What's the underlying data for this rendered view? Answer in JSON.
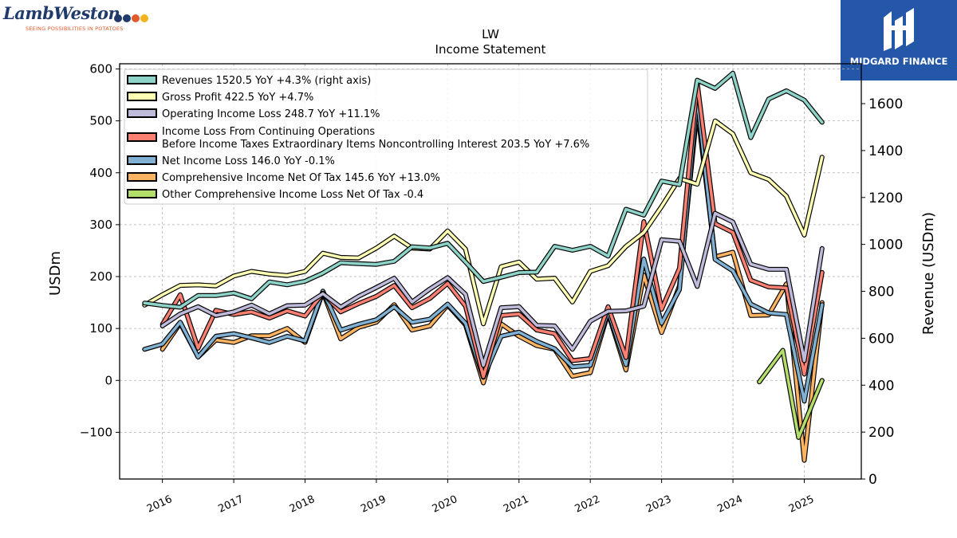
{
  "header": {
    "brand_name": "LambWeston",
    "brand_tagline": "SEEING POSSIBILITIES IN POTATOES",
    "badge_label": "MIDGARD FINANCE"
  },
  "chart_data": {
    "type": "line",
    "title": "LW",
    "subtitle": "Income Statement",
    "ylabel": "USDm",
    "y2label": "Revenue (USDm)",
    "ylim": [
      -190,
      610
    ],
    "y2lim": [
      0,
      1770
    ],
    "yticks": [
      -100,
      0,
      100,
      200,
      300,
      400,
      500,
      600
    ],
    "y2ticks": [
      0,
      200,
      400,
      600,
      800,
      1000,
      1200,
      1400,
      1600
    ],
    "xlim": [
      2015.4,
      2025.8
    ],
    "xticks": [
      2016,
      2017,
      2018,
      2019,
      2020,
      2021,
      2022,
      2023,
      2024,
      2025
    ],
    "grid": true,
    "legend_position": "top-left",
    "series": [
      {
        "name": "Revenues  1520.5 YoY +4.3% (right axis)",
        "axis": "right",
        "color": "#8dd3c7",
        "x": [
          2015.75,
          2016.0,
          2016.25,
          2016.5,
          2016.75,
          2017.0,
          2017.25,
          2017.5,
          2017.75,
          2018.0,
          2018.25,
          2018.5,
          2018.75,
          2019.0,
          2019.25,
          2019.5,
          2019.75,
          2020.0,
          2020.25,
          2020.5,
          2020.75,
          2021.0,
          2021.25,
          2021.5,
          2021.75,
          2022.0,
          2022.25,
          2022.5,
          2022.75,
          2023.0,
          2023.25,
          2023.5,
          2023.75,
          2024.0,
          2024.25,
          2024.5,
          2024.75,
          2025.0,
          2025.25
        ],
        "y": [
          750,
          740,
          732,
          782,
          782,
          793,
          768,
          840,
          828,
          843,
          878,
          922,
          918,
          915,
          928,
          990,
          985,
          1005,
          925,
          842,
          860,
          880,
          882,
          992,
          975,
          992,
          950,
          1150,
          1125,
          1270,
          1255,
          1700,
          1665,
          1730,
          1455,
          1620,
          1655,
          1615,
          1520.5
        ]
      },
      {
        "name": "Gross Profit  422.5 YoY +4.7%",
        "axis": "left",
        "color": "#ffffb3",
        "x": [
          2015.75,
          2016.0,
          2016.25,
          2016.5,
          2016.75,
          2017.0,
          2017.25,
          2017.5,
          2017.75,
          2018.0,
          2018.25,
          2018.5,
          2018.75,
          2019.0,
          2019.25,
          2019.5,
          2019.75,
          2020.0,
          2020.25,
          2020.5,
          2020.75,
          2021.0,
          2021.25,
          2021.5,
          2021.75,
          2022.0,
          2022.25,
          2022.5,
          2022.75,
          2023.0,
          2023.25,
          2023.5,
          2023.75,
          2024.0,
          2024.25,
          2024.5,
          2024.75,
          2025.0,
          2025.25
        ],
        "y": [
          145,
          165,
          183,
          184,
          182,
          201,
          210,
          205,
          202,
          210,
          245,
          237,
          236,
          255,
          278,
          255,
          253,
          288,
          253,
          109,
          219,
          228,
          195,
          197,
          151,
          210,
          221,
          258,
          285,
          335,
          389,
          378,
          500,
          475,
          400,
          387,
          355,
          280,
          430
        ]
      },
      {
        "name": "Operating Income Loss  248.7 YoY +11.1%",
        "axis": "left",
        "color": "#bebada",
        "x": [
          2016.0,
          2016.25,
          2016.5,
          2016.75,
          2017.0,
          2017.25,
          2017.5,
          2017.75,
          2018.0,
          2018.25,
          2018.5,
          2018.75,
          2019.0,
          2019.25,
          2019.5,
          2019.75,
          2020.0,
          2020.25,
          2020.5,
          2020.75,
          2021.0,
          2021.25,
          2021.5,
          2021.75,
          2022.0,
          2022.25,
          2022.5,
          2022.75,
          2023.0,
          2023.25,
          2023.5,
          2023.75,
          2024.0,
          2024.25,
          2024.5,
          2024.75,
          2025.0,
          2025.25
        ],
        "y": [
          105,
          128,
          142,
          125,
          132,
          145,
          128,
          144,
          145,
          167,
          141,
          162,
          179,
          197,
          151,
          176,
          198,
          166,
          29,
          140,
          142,
          106,
          105,
          60,
          114,
          133,
          134,
          143,
          271,
          268,
          181,
          322,
          305,
          224,
          214,
          214,
          38,
          254
        ]
      },
      {
        "name": "Income Loss From Continuing Operations",
        "name2": "Before Income Taxes Extraordinary Items Noncontrolling Interest  203.5 YoY +7.6%",
        "axis": "left",
        "color": "#fb8072",
        "x": [
          2016.0,
          2016.25,
          2016.5,
          2016.75,
          2017.0,
          2017.25,
          2017.5,
          2017.75,
          2018.0,
          2018.25,
          2018.5,
          2018.75,
          2019.0,
          2019.25,
          2019.5,
          2019.75,
          2020.0,
          2020.25,
          2020.5,
          2020.75,
          2021.0,
          2021.25,
          2021.5,
          2021.75,
          2022.0,
          2022.25,
          2022.5,
          2022.75,
          2023.0,
          2023.25,
          2023.5,
          2023.75,
          2024.0,
          2024.25,
          2024.5,
          2024.75,
          2025.0,
          2025.25
        ],
        "y": [
          108,
          165,
          62,
          135,
          127,
          132,
          120,
          134,
          124,
          168,
          132,
          148,
          162,
          183,
          140,
          158,
          187,
          143,
          7,
          125,
          128,
          97,
          90,
          38,
          42,
          142,
          44,
          306,
          137,
          216,
          573,
          302,
          285,
          193,
          180,
          178,
          12,
          208
        ]
      },
      {
        "name": "Net Income Loss  146.0 YoY -0.1%",
        "axis": "left",
        "color": "#80b1d3",
        "x": [
          2015.75,
          2016.0,
          2016.25,
          2016.5,
          2016.75,
          2017.0,
          2017.25,
          2017.5,
          2017.75,
          2018.0,
          2018.25,
          2018.5,
          2018.75,
          2019.0,
          2019.25,
          2019.5,
          2019.75,
          2020.0,
          2020.25,
          2020.5,
          2020.75,
          2021.0,
          2021.25,
          2021.5,
          2021.75,
          2022.0,
          2022.25,
          2022.5,
          2022.75,
          2023.0,
          2023.25,
          2023.5,
          2023.75,
          2024.0,
          2024.25,
          2024.5,
          2024.75,
          2025.0,
          2025.25
        ],
        "y": [
          60,
          70,
          112,
          45,
          85,
          90,
          82,
          73,
          85,
          76,
          172,
          97,
          108,
          117,
          142,
          112,
          118,
          147,
          110,
          6,
          85,
          93,
          75,
          61,
          26,
          29,
          133,
          30,
          234,
          110,
          175,
          545,
          233,
          211,
          147,
          130,
          127,
          -40,
          146
        ]
      },
      {
        "name": "Comprehensive Income Net Of Tax  145.6 YoY +13.0%",
        "axis": "left",
        "color": "#fdb462",
        "x": [
          2016.0,
          2016.25,
          2016.5,
          2016.75,
          2017.0,
          2017.25,
          2017.5,
          2017.75,
          2018.0,
          2018.25,
          2018.5,
          2018.75,
          2019.0,
          2019.25,
          2019.5,
          2019.75,
          2020.0,
          2020.25,
          2020.5,
          2020.75,
          2021.0,
          2021.25,
          2021.5,
          2021.75,
          2022.0,
          2022.25,
          2022.5,
          2022.75,
          2023.0,
          2023.25,
          2023.5,
          2023.75,
          2024.0,
          2024.25,
          2024.5,
          2024.75,
          2025.0,
          2025.25
        ],
        "y": [
          60,
          110,
          45,
          78,
          73,
          86,
          86,
          100,
          73,
          170,
          80,
          102,
          112,
          146,
          97,
          105,
          145,
          107,
          -5,
          109,
          85,
          67,
          60,
          8,
          15,
          130,
          20,
          203,
          92,
          182,
          523,
          238,
          247,
          125,
          126,
          186,
          -154,
          150
        ]
      },
      {
        "name": "Other Comprehensive Income Loss Net Of Tax  -0.4",
        "axis": "left",
        "color": "#b3de69",
        "x": [
          2024.37,
          2024.7,
          2024.92,
          2025.25
        ],
        "y": [
          -3,
          58,
          -110,
          0
        ]
      }
    ]
  }
}
